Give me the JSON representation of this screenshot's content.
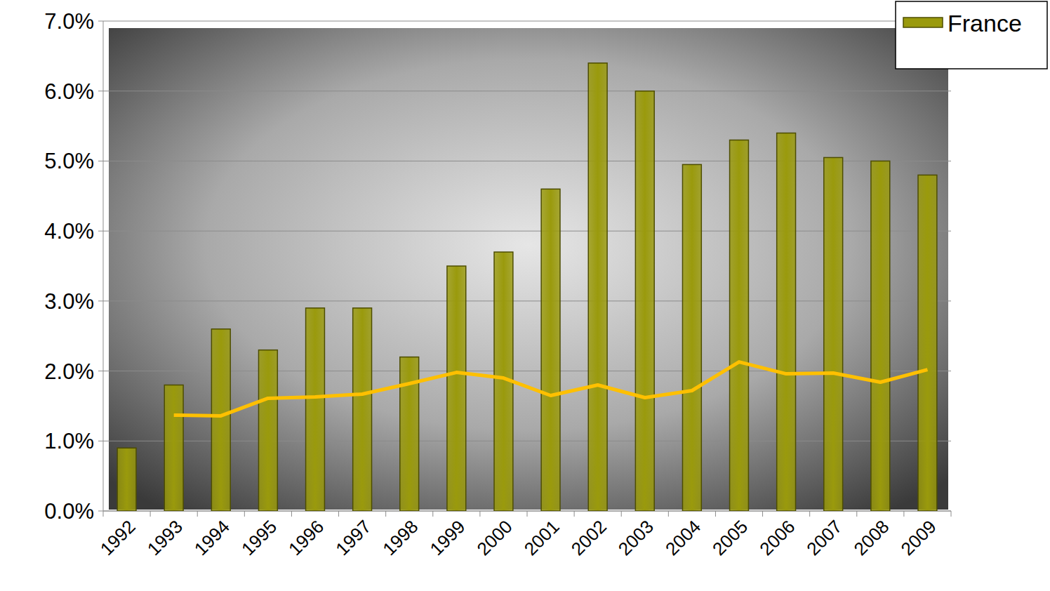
{
  "chart_data": {
    "type": "bar",
    "categories": [
      "1992",
      "1993",
      "1994",
      "1995",
      "1996",
      "1997",
      "1998",
      "1999",
      "2000",
      "2001",
      "2002",
      "2003",
      "2004",
      "2005",
      "2006",
      "2007",
      "2008",
      "2009"
    ],
    "series": [
      {
        "name": "France",
        "type": "bar",
        "color": "#9a9a0c",
        "values": [
          0.9,
          1.8,
          2.6,
          2.3,
          2.9,
          2.9,
          2.2,
          3.5,
          3.7,
          4.6,
          6.4,
          6.0,
          4.95,
          5.3,
          5.4,
          5.05,
          5.0,
          4.8
        ]
      },
      {
        "type": "line",
        "color": "#ffc000",
        "values": [
          null,
          1.37,
          1.36,
          1.61,
          1.63,
          1.67,
          1.82,
          1.98,
          1.9,
          1.65,
          1.8,
          1.62,
          1.72,
          2.13,
          1.96,
          1.97,
          1.84,
          2.02
        ]
      }
    ],
    "ylim": [
      0,
      7
    ],
    "yticks": [
      {
        "value": 0,
        "label": "0.0%"
      },
      {
        "value": 1,
        "label": "1.0%"
      },
      {
        "value": 2,
        "label": "2.0%"
      },
      {
        "value": 3,
        "label": "3.0%"
      },
      {
        "value": 4,
        "label": "4.0%"
      },
      {
        "value": 5,
        "label": "5.0%"
      },
      {
        "value": 6,
        "label": "6.0%"
      },
      {
        "value": 7,
        "label": "7.0%"
      }
    ],
    "grid": true,
    "legend": "top-right"
  }
}
